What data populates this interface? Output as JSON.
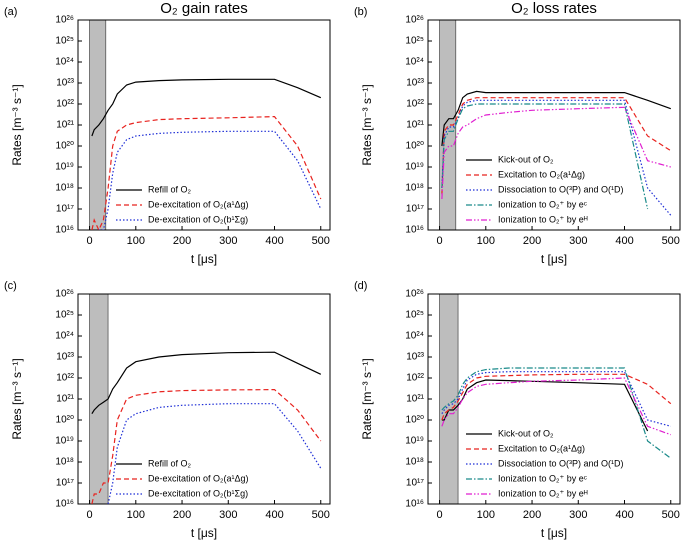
{
  "chart_data": [
    {
      "type": "line",
      "panel_label": "(a)",
      "title": "O₂ gain rates",
      "x_label": "t [μs]",
      "y_label": "Rates [m⁻³ s⁻¹]",
      "log_y": true,
      "xlim": [
        -25,
        520
      ],
      "ylim": [
        1e+16,
        1e+26
      ],
      "xticks": [
        0,
        100,
        200,
        300,
        400,
        500
      ],
      "yticks": [
        {
          "value": 1e+16,
          "label": "10¹⁶"
        },
        {
          "value": 1e+17,
          "label": "10¹⁷"
        },
        {
          "value": 1e+18,
          "label": "10¹⁸"
        },
        {
          "value": 1e+19,
          "label": "10¹⁹"
        },
        {
          "value": 1e+20,
          "label": "10²⁰"
        },
        {
          "value": 1e+21,
          "label": "10²¹"
        },
        {
          "value": 1e+22,
          "label": "10²²"
        },
        {
          "value": 1e+23,
          "label": "10²³"
        },
        {
          "value": 1e+24,
          "label": "10²⁴"
        },
        {
          "value": 1e+25,
          "label": "10²⁵"
        },
        {
          "value": 1e+26,
          "label": "10²⁶"
        }
      ],
      "shaded_x": [
        0,
        35
      ],
      "legend_loc": "lower center",
      "x": [
        5,
        10,
        20,
        30,
        40,
        50,
        60,
        80,
        100,
        150,
        200,
        300,
        400,
        450,
        500
      ],
      "series": [
        {
          "name": "Refill of O₂",
          "color": "#000000",
          "linestyle": "solid",
          "values": [
            3e+20,
            6e+20,
            1e+21,
            2e+21,
            5e+21,
            1e+22,
            3e+22,
            8e+22,
            1.1e+23,
            1.3e+23,
            1.4e+23,
            1.5e+23,
            1.5e+23,
            6e+22,
            2e+22
          ]
        },
        {
          "name": "De-excitation of O₂(a¹Δg)",
          "color": "#e8231f",
          "linestyle": "dashed",
          "values": [
            1e+16,
            3e+16,
            1e+16,
            3e+16,
            1e+18,
            1e+20,
            5e+20,
            1e+21,
            1.3e+21,
            1.8e+21,
            2e+21,
            2.2e+21,
            2.5e+21,
            1e+20,
            3e+17
          ]
        },
        {
          "name": "De-excitation of O₂(b¹Σg)",
          "color": "#1f2fd6",
          "linestyle": "dotted",
          "values": [
            null,
            null,
            1e+16,
            1e+16,
            1e+17,
            5e+18,
            5e+19,
            2e+20,
            3e+20,
            4e+20,
            4.5e+20,
            5e+20,
            5e+20,
            2e+19,
            1e+17
          ]
        }
      ]
    },
    {
      "type": "line",
      "panel_label": "(b)",
      "title": "O₂ loss rates",
      "x_label": "t [μs]",
      "y_label": "Rates [m⁻³ s⁻¹]",
      "log_y": true,
      "xlim": [
        -25,
        520
      ],
      "ylim": [
        1e+16,
        1e+26
      ],
      "xticks": [
        0,
        100,
        200,
        300,
        400,
        500
      ],
      "yticks": [
        {
          "value": 1e+16,
          "label": "10¹⁶"
        },
        {
          "value": 1e+17,
          "label": "10¹⁷"
        },
        {
          "value": 1e+18,
          "label": "10¹⁸"
        },
        {
          "value": 1e+19,
          "label": "10¹⁹"
        },
        {
          "value": 1e+20,
          "label": "10²⁰"
        },
        {
          "value": 1e+21,
          "label": "10²¹"
        },
        {
          "value": 1e+22,
          "label": "10²²"
        },
        {
          "value": 1e+23,
          "label": "10²³"
        },
        {
          "value": 1e+24,
          "label": "10²⁴"
        },
        {
          "value": 1e+25,
          "label": "10²⁵"
        },
        {
          "value": 1e+26,
          "label": "10²⁶"
        }
      ],
      "shaded_x": [
        0,
        35
      ],
      "legend_loc": "lower center",
      "x": [
        5,
        10,
        20,
        30,
        40,
        50,
        60,
        80,
        100,
        150,
        200,
        300,
        400,
        450,
        500
      ],
      "series": [
        {
          "name": "Kick-out of O₂",
          "color": "#000000",
          "linestyle": "solid",
          "values": [
            1e+20,
            1e+21,
            2e+21,
            2e+21,
            5e+21,
            2e+22,
            3e+22,
            4e+22,
            3.5e+22,
            3.5e+22,
            3.5e+22,
            3.5e+22,
            3.5e+22,
            1.5e+22,
            6e+21
          ]
        },
        {
          "name": "Excitation to O₂(a¹Δg)",
          "color": "#e8231f",
          "linestyle": "dashed",
          "values": [
            5e+17,
            5e+20,
            1e+21,
            1e+21,
            3e+21,
            1e+22,
            1.5e+22,
            2e+22,
            2e+22,
            2e+22,
            2e+22,
            2e+22,
            2e+22,
            3e+20,
            6e+19
          ]
        },
        {
          "name": "Dissociation to O(³P) and O(¹D)",
          "color": "#1f2fd6",
          "linestyle": "dotted",
          "values": [
            1e+18,
            3e+20,
            8e+20,
            8e+20,
            2e+21,
            8e+21,
            1.2e+22,
            1.5e+22,
            1.5e+22,
            1.5e+22,
            1.5e+22,
            1.5e+22,
            1.5e+22,
            1e+18,
            5e+16
          ]
        },
        {
          "name": "Ionization to O₂⁺ by eᶜ",
          "color": "#1a8a8a",
          "linestyle": "dashdot",
          "values": [
            1e+18,
            2e+20,
            5e+20,
            5e+20,
            2e+21,
            6e+21,
            8e+21,
            1e+22,
            1e+22,
            1e+22,
            1e+22,
            1e+22,
            1e+22,
            1e+17,
            null
          ]
        },
        {
          "name": "Ionization to O₂⁺ by eᴴ",
          "color": "#e01fd0",
          "linestyle": "dashdotdot",
          "values": [
            3e+17,
            5e+19,
            1e+20,
            1e+20,
            4e+20,
            8e+20,
            1e+21,
            2e+21,
            3e+21,
            4e+21,
            5e+21,
            6e+21,
            7e+21,
            2e+19,
            1e+19
          ]
        }
      ]
    },
    {
      "type": "line",
      "panel_label": "(c)",
      "x_label": "t [μs]",
      "y_label": "Rates [m⁻³ s⁻¹]",
      "log_y": true,
      "xlim": [
        -25,
        520
      ],
      "ylim": [
        1e+16,
        1e+26
      ],
      "xticks": [
        0,
        100,
        200,
        300,
        400,
        500
      ],
      "yticks": [
        {
          "value": 1e+16,
          "label": "10¹⁶"
        },
        {
          "value": 1e+17,
          "label": "10¹⁷"
        },
        {
          "value": 1e+18,
          "label": "10¹⁸"
        },
        {
          "value": 1e+19,
          "label": "10¹⁹"
        },
        {
          "value": 1e+20,
          "label": "10²⁰"
        },
        {
          "value": 1e+21,
          "label": "10²¹"
        },
        {
          "value": 1e+22,
          "label": "10²²"
        },
        {
          "value": 1e+23,
          "label": "10²³"
        },
        {
          "value": 1e+24,
          "label": "10²⁴"
        },
        {
          "value": 1e+25,
          "label": "10²⁵"
        },
        {
          "value": 1e+26,
          "label": "10²⁶"
        }
      ],
      "shaded_x": [
        0,
        40
      ],
      "legend_loc": "lower center",
      "x": [
        5,
        10,
        20,
        30,
        40,
        50,
        60,
        80,
        100,
        150,
        200,
        300,
        400,
        450,
        500
      ],
      "series": [
        {
          "name": "Refill of O₂",
          "color": "#000000",
          "linestyle": "solid",
          "values": [
            2e+20,
            3e+20,
            5e+20,
            7e+20,
            1e+21,
            3e+21,
            6e+21,
            3e+22,
            6e+22,
            1e+23,
            1.3e+23,
            1.6e+23,
            1.7e+23,
            5e+22,
            1.5e+22
          ]
        },
        {
          "name": "De-excitation of O₂(a¹Δg)",
          "color": "#e8231f",
          "linestyle": "dashed",
          "values": [
            1e+16,
            3e+16,
            3e+16,
            1e+17,
            1e+17,
            2e+18,
            1e+20,
            1e+21,
            1.5e+21,
            2.2e+21,
            2.5e+21,
            2.7e+21,
            2.8e+21,
            3e+20,
            1e+19
          ]
        },
        {
          "name": "De-excitation of O₂(b¹Σg)",
          "color": "#1f2fd6",
          "linestyle": "dotted",
          "values": [
            null,
            null,
            null,
            null,
            1e+16,
            1e+17,
            5e+18,
            1e+20,
            2e+20,
            4e+20,
            5e+20,
            6e+20,
            6e+20,
            3e+19,
            5e+17
          ]
        }
      ]
    },
    {
      "type": "line",
      "panel_label": "(d)",
      "x_label": "t [μs]",
      "y_label": "Rates [m⁻³ s⁻¹]",
      "log_y": true,
      "xlim": [
        -25,
        520
      ],
      "ylim": [
        1e+16,
        1e+26
      ],
      "xticks": [
        0,
        100,
        200,
        300,
        400,
        500
      ],
      "yticks": [
        {
          "value": 1e+16,
          "label": "10¹⁶"
        },
        {
          "value": 1e+17,
          "label": "10¹⁷"
        },
        {
          "value": 1e+18,
          "label": "10¹⁸"
        },
        {
          "value": 1e+19,
          "label": "10¹⁹"
        },
        {
          "value": 1e+20,
          "label": "10²⁰"
        },
        {
          "value": 1e+21,
          "label": "10²¹"
        },
        {
          "value": 1e+22,
          "label": "10²²"
        },
        {
          "value": 1e+23,
          "label": "10²³"
        },
        {
          "value": 1e+24,
          "label": "10²⁴"
        },
        {
          "value": 1e+25,
          "label": "10²⁵"
        },
        {
          "value": 1e+26,
          "label": "10²⁶"
        }
      ],
      "shaded_x": [
        0,
        40
      ],
      "legend_loc": "lower center",
      "x": [
        5,
        10,
        20,
        30,
        40,
        50,
        60,
        80,
        100,
        150,
        200,
        300,
        400,
        450,
        500
      ],
      "series": [
        {
          "name": "Kick-out of O₂",
          "color": "#000000",
          "linestyle": "solid",
          "values": [
            1e+20,
            1e+20,
            3e+20,
            3e+20,
            5e+20,
            1e+21,
            3e+21,
            6e+21,
            8e+21,
            7.5e+21,
            7e+21,
            6e+21,
            5e+21,
            3e+19,
            null
          ]
        },
        {
          "name": "Excitation to O₂(a¹Δg)",
          "color": "#e8231f",
          "linestyle": "dashed",
          "values": [
            1e+20,
            2e+20,
            3e+20,
            4e+20,
            8e+20,
            2e+21,
            5e+21,
            1e+22,
            1.2e+22,
            1.3e+22,
            1.4e+22,
            1.5e+22,
            1.5e+22,
            5e+21,
            6e+20
          ]
        },
        {
          "name": "Dissociation to O(³P) and O(¹D)",
          "color": "#1f2fd6",
          "linestyle": "dotted",
          "values": [
            2e+20,
            3e+20,
            5e+20,
            6e+20,
            1e+21,
            3e+21,
            8e+21,
            1.5e+22,
            1.8e+22,
            2e+22,
            2e+22,
            2e+22,
            2e+22,
            1e+20,
            5e+19
          ]
        },
        {
          "name": "Ionization to O₂⁺ by eᶜ",
          "color": "#1a8a8a",
          "linestyle": "dashdot",
          "values": [
            3e+20,
            4e+20,
            6e+20,
            8e+20,
            1.5e+21,
            5e+21,
            1e+22,
            2e+22,
            2.5e+22,
            3e+22,
            3e+22,
            3e+22,
            3e+22,
            1e+19,
            1.5e+18
          ]
        },
        {
          "name": "Ionization to O₂⁺ by eᴴ",
          "color": "#e01fd0",
          "linestyle": "dashdotdot",
          "values": [
            5e+19,
            1e+20,
            2e+20,
            2e+20,
            4e+20,
            1e+21,
            2e+21,
            4e+21,
            5e+21,
            6e+21,
            7e+21,
            8e+21,
            1e+22,
            5e+19,
            2e+19
          ]
        }
      ]
    }
  ]
}
